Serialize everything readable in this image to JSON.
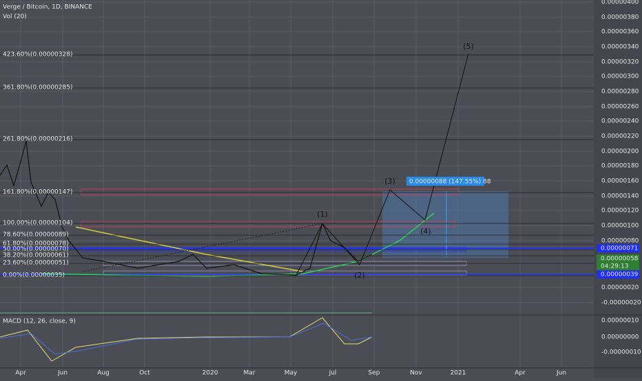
{
  "header": {
    "title": "Verge / Bitcoin, 1D, BINANCE",
    "volume": "Vol (20)"
  },
  "macd": {
    "title": "MACD (12, 26, close, 9)",
    "axis": [
      "0.00000010",
      "0.00000000",
      "-0.00000010"
    ]
  },
  "price_axis": [
    "0.00000400",
    "0.00000380",
    "0.00000360",
    "0.00000340",
    "0.00000320",
    "0.00000300",
    "0.00000280",
    "0.00000260",
    "0.00000240",
    "0.00000220",
    "0.00000200",
    "0.00000180",
    "0.00000160",
    "0.00000140",
    "0.00000120",
    "0.00000100",
    "0.00000080",
    "0.00000020",
    "-0.00000020"
  ],
  "time_axis": [
    "Apr",
    "Jun",
    "Aug",
    "Oct",
    "2020",
    "Mar",
    "May",
    "Jul",
    "Sep",
    "Nov",
    "2021",
    "Apr",
    "Jun"
  ],
  "fib_levels": [
    "423.60%(0.00000328)",
    "361.80%(0.00000285)",
    "261.80%(0.00000216)",
    "161.80%(0.00000147)",
    "100.00%(0.00000104)",
    "78.60%(0.00000089)",
    "61.80%(0.00000078)",
    "50.00%(0.00000070)",
    "38.20%(0.00000061)",
    "23.60%(0.00000051)",
    "0.00%(0.00000035)"
  ],
  "price_tags": [
    "0.00000071",
    "0.00000058",
    "04:29:13",
    "0.00000039"
  ],
  "waves": [
    "(1)",
    "(2)",
    "(3)",
    "(4)",
    "(5)"
  ],
  "measure": "0.00000088 (147.55%) 88"
}
